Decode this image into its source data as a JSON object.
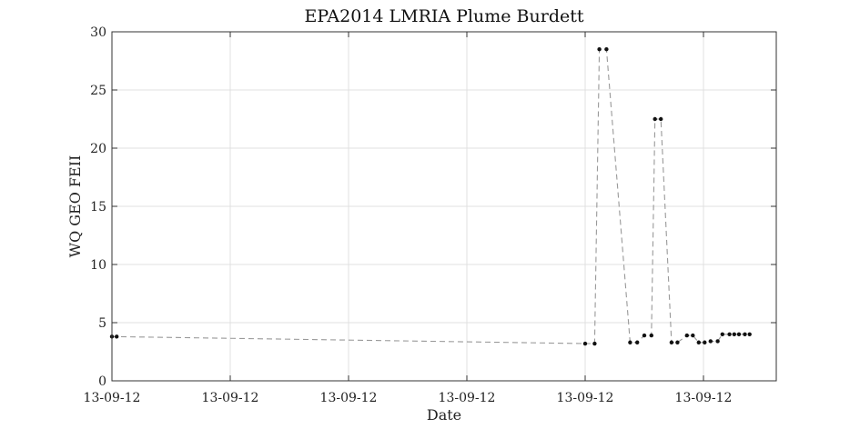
{
  "chart_data": {
    "type": "line",
    "title": "EPA2014 LMRIA Plume Burdett",
    "xlabel": "Date",
    "ylabel": "WQ GEO FEII",
    "ylim": [
      0,
      30
    ],
    "yticks": [
      0,
      5,
      10,
      15,
      20,
      25,
      30
    ],
    "xticks": [
      "13-09-12",
      "13-09-12",
      "13-09-12",
      "13-09-12",
      "13-09-12",
      "13-09-12"
    ],
    "xlim": [
      0,
      5.63
    ],
    "grid": true,
    "line_style": "dashed",
    "colors": {
      "line": "#999999",
      "marker": "#111111",
      "grid": "#e0e0e0",
      "axis": "#333333"
    },
    "series": [
      {
        "x": [
          0.0,
          0.04,
          4.0,
          4.08,
          4.12,
          4.18,
          4.38,
          4.44,
          4.5,
          4.56,
          4.59,
          4.64,
          4.73,
          4.78,
          4.86,
          4.91,
          4.96,
          5.01,
          5.06,
          5.12,
          5.16,
          5.22,
          5.26,
          5.3,
          5.35,
          5.39
        ],
        "y": [
          3.8,
          3.8,
          3.2,
          3.2,
          28.5,
          28.5,
          3.3,
          3.3,
          3.9,
          3.9,
          22.5,
          22.5,
          3.3,
          3.3,
          3.9,
          3.9,
          3.3,
          3.3,
          3.4,
          3.4,
          4.0,
          4.0,
          4.0,
          4.0,
          4.0,
          4.0
        ]
      }
    ]
  }
}
